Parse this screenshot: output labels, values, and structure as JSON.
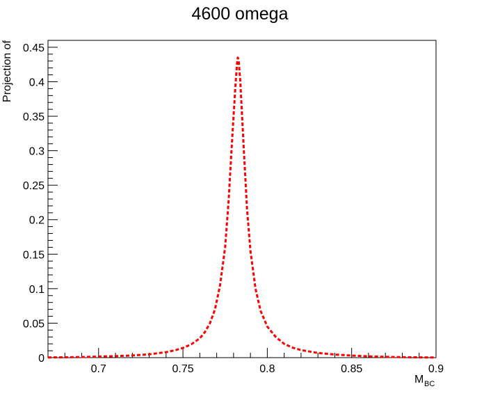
{
  "chart_data": {
    "type": "line",
    "title": "4600 omega",
    "xlabel": "M",
    "xlabel_subscript": "BC",
    "ylabel": "Projection of",
    "xlim": [
      0.67,
      0.9
    ],
    "ylim": [
      0,
      0.46
    ],
    "x_ticks": [
      0.7,
      0.75,
      0.8,
      0.85,
      0.9
    ],
    "x_tick_labels": [
      "0.7",
      "0.75",
      "0.8",
      "0.85",
      "0.9"
    ],
    "y_ticks": [
      0,
      0.05,
      0.1,
      0.15,
      0.2,
      0.25,
      0.3,
      0.35,
      0.4,
      0.45
    ],
    "y_tick_labels": [
      "0",
      "0.05",
      "0.1",
      "0.15",
      "0.2",
      "0.25",
      "0.3",
      "0.35",
      "0.4",
      "0.45"
    ],
    "grid": false,
    "series": [
      {
        "color": "#ff0000",
        "style": "dashed",
        "x": [
          0.67,
          0.68,
          0.69,
          0.7,
          0.71,
          0.72,
          0.73,
          0.74,
          0.745,
          0.75,
          0.755,
          0.76,
          0.763,
          0.766,
          0.769,
          0.772,
          0.775,
          0.777,
          0.779,
          0.781,
          0.782,
          0.7825,
          0.783,
          0.784,
          0.786,
          0.788,
          0.79,
          0.793,
          0.796,
          0.8,
          0.805,
          0.81,
          0.815,
          0.82,
          0.83,
          0.84,
          0.85,
          0.86,
          0.87,
          0.88,
          0.89,
          0.9
        ],
        "y": [
          0.0003,
          0.0005,
          0.0009,
          0.0015,
          0.0022,
          0.0032,
          0.0048,
          0.008,
          0.0105,
          0.014,
          0.0195,
          0.028,
          0.037,
          0.05,
          0.07,
          0.105,
          0.16,
          0.225,
          0.31,
          0.39,
          0.425,
          0.435,
          0.432,
          0.4,
          0.305,
          0.215,
          0.155,
          0.1,
          0.068,
          0.045,
          0.03,
          0.02,
          0.0145,
          0.011,
          0.0068,
          0.0045,
          0.003,
          0.0019,
          0.0012,
          0.0007,
          0.0004,
          0.0002
        ]
      }
    ]
  }
}
